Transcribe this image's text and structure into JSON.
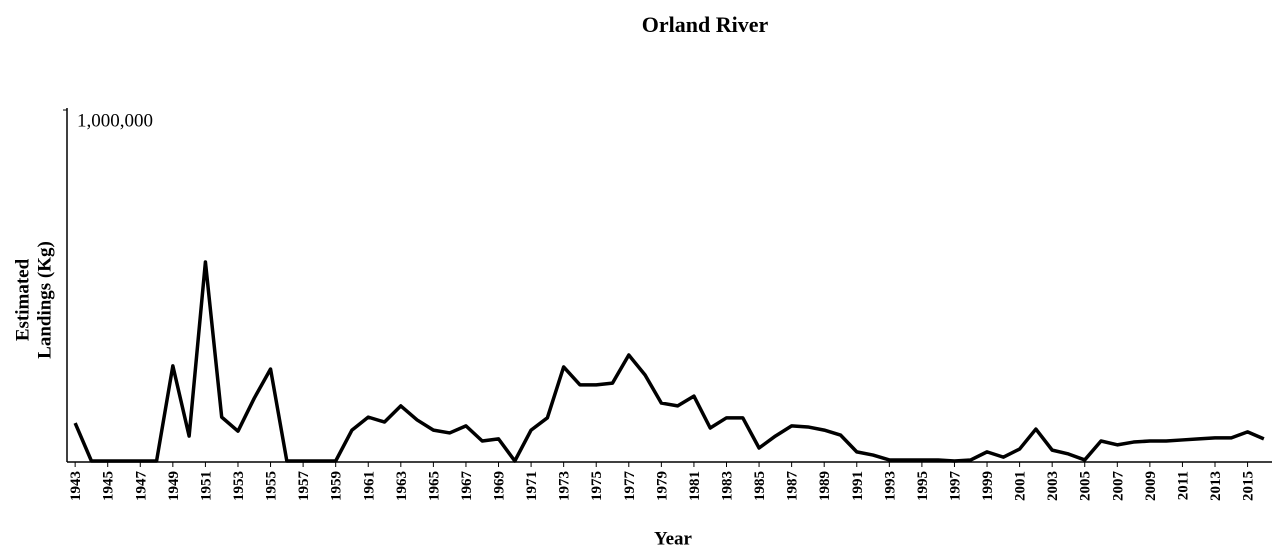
{
  "chart_data": {
    "type": "line",
    "title": "Orland River",
    "xlabel": "Year",
    "ylabel": [
      "Estimated",
      "Landings (Kg)"
    ],
    "x": [
      1943,
      1944,
      1945,
      1946,
      1947,
      1948,
      1949,
      1950,
      1951,
      1952,
      1953,
      1954,
      1955,
      1956,
      1957,
      1958,
      1959,
      1960,
      1961,
      1962,
      1963,
      1964,
      1965,
      1966,
      1967,
      1968,
      1969,
      1970,
      1971,
      1972,
      1973,
      1974,
      1975,
      1976,
      1977,
      1978,
      1979,
      1980,
      1981,
      1982,
      1983,
      1984,
      1985,
      1986,
      1987,
      1988,
      1989,
      1990,
      1991,
      1992,
      1993,
      1994,
      1995,
      1996,
      1997,
      1998,
      1999,
      2000,
      2001,
      2002,
      2003,
      2004,
      2005,
      2006,
      2007,
      2008,
      2009,
      2010,
      2011,
      2012,
      2013,
      2014,
      2015,
      2016
    ],
    "series": [
      {
        "color": "#000000",
        "values": [
          108000,
          0,
          0,
          0,
          0,
          0,
          271000,
          71000,
          567000,
          125000,
          85000,
          179000,
          262000,
          0,
          0,
          0,
          0,
          88000,
          125000,
          111000,
          157000,
          117000,
          88000,
          80000,
          100000,
          57000,
          63000,
          0,
          88000,
          123000,
          268000,
          217000,
          217000,
          222000,
          302000,
          245000,
          165000,
          157000,
          185000,
          94000,
          123000,
          123000,
          37000,
          71000,
          100000,
          97000,
          88000,
          74000,
          26000,
          17000,
          3000,
          3000,
          3000,
          3000,
          0,
          3000,
          26000,
          11000,
          34000,
          91000,
          31000,
          20000,
          3000,
          57000,
          46000,
          54000,
          57000,
          57000,
          60000,
          63000,
          66000,
          66000,
          83000,
          63000
        ]
      }
    ],
    "xlim": [
      1942.5,
      2016.5
    ],
    "xticks": [
      1943,
      1945,
      1947,
      1949,
      1951,
      1953,
      1955,
      1957,
      1959,
      1961,
      1963,
      1965,
      1967,
      1969,
      1971,
      1973,
      1975,
      1977,
      1979,
      1981,
      1983,
      1985,
      1987,
      1989,
      1991,
      1993,
      1995,
      1997,
      1999,
      2001,
      2003,
      2005,
      2007,
      2009,
      2011,
      2013,
      2015
    ],
    "ylim": [
      0,
      1000000
    ],
    "yticks": [
      {
        "value": 1000000,
        "label": "1,000,000"
      }
    ],
    "grid": false
  }
}
